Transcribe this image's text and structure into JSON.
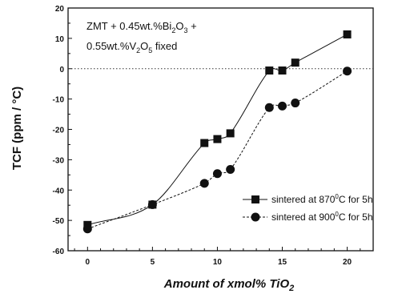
{
  "chart_data": {
    "type": "line",
    "xlabel_parts": [
      "Amount of xmol% TiO",
      "2"
    ],
    "ylabel": "TCF (ppm / °C)",
    "xlim": [
      -1.5,
      22
    ],
    "ylim": [
      -60,
      20
    ],
    "x_ticks": [
      0,
      5,
      10,
      15,
      20
    ],
    "x_tick_labels": [
      "0",
      "5",
      "10",
      "15",
      "20"
    ],
    "y_ticks": [
      -60,
      -50,
      -40,
      -30,
      -20,
      -10,
      0,
      10,
      20
    ],
    "y_tick_labels": [
      "-60",
      "-50",
      "-40",
      "-30",
      "-20",
      "-10",
      "0",
      "10",
      "20"
    ],
    "reference_line_y": 0,
    "annotation": {
      "line1_parts": [
        "ZMT + 0.45wt.%Bi",
        "2",
        "O",
        "3",
        " +"
      ],
      "line2_parts": [
        "0.55wt.%V",
        "2",
        "O",
        "5",
        " fixed"
      ]
    },
    "legend_position": "lower-right",
    "series": [
      {
        "name_parts": [
          "sintered at 870",
          "0",
          "C for 5h"
        ],
        "marker": "square",
        "line_style": "solid",
        "x": [
          0,
          5,
          9,
          10,
          11,
          14,
          15,
          16,
          20
        ],
        "y": [
          -51.5,
          -44.8,
          -24.5,
          -23.2,
          -21.3,
          -0.6,
          -0.6,
          2.0,
          11.3
        ]
      },
      {
        "name_parts": [
          "sintered at 900",
          "0",
          "C for 5h"
        ],
        "marker": "circle",
        "line_style": "dashed",
        "x": [
          0,
          5,
          9,
          10,
          11,
          14,
          15,
          16,
          20
        ],
        "y": [
          -52.8,
          -44.8,
          -37.8,
          -34.6,
          -33.2,
          -12.8,
          -12.3,
          -11.3,
          -0.8
        ]
      }
    ]
  }
}
